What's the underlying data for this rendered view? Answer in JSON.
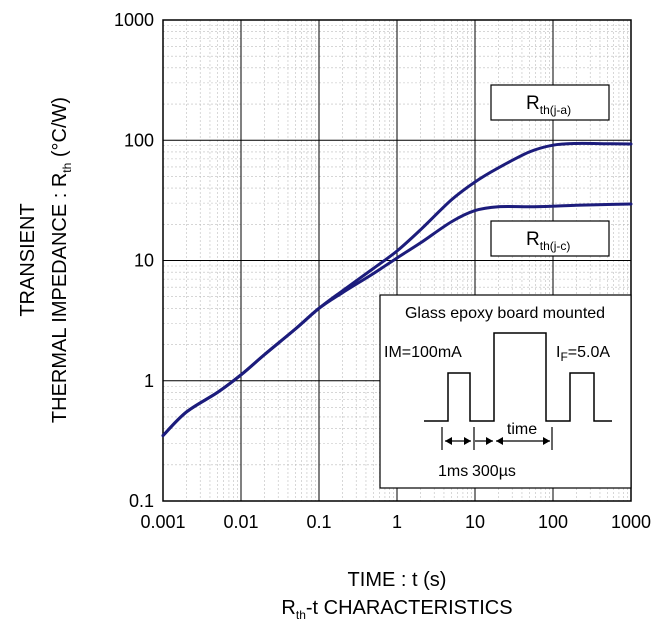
{
  "chart_data": {
    "type": "line",
    "x_scale": "log",
    "y_scale": "log",
    "xlim": [
      0.001,
      1000
    ],
    "ylim": [
      0.1,
      1000
    ],
    "grid": true,
    "x_ticks": [
      "0.001",
      "0.01",
      "0.1",
      "1",
      "10",
      "100",
      "1000"
    ],
    "y_ticks": [
      "0.1",
      "1",
      "10",
      "100",
      "1000"
    ],
    "xlabel": "TIME : t (s)",
    "caption": {
      "main": "R",
      "sub": "th",
      "rest": "-t CHARACTERISTICS"
    },
    "ylabel": {
      "line1": "TRANSIENT",
      "line2_main": "THERMAL IMPEDANCE : R",
      "line2_sub": "th",
      "line2_rest": " (°C/W)"
    },
    "line_color": "#1c1c7c",
    "series": [
      {
        "name": "Rth(j-a)",
        "label_main": "R",
        "label_sub": "th(j-a)",
        "x": [
          0.001,
          0.002,
          0.005,
          0.01,
          0.02,
          0.05,
          0.1,
          0.2,
          0.5,
          1,
          2,
          5,
          10,
          20,
          50,
          100,
          200,
          500,
          1000
        ],
        "y": [
          0.35,
          0.55,
          0.8,
          1.12,
          1.65,
          2.7,
          4.0,
          5.6,
          8.6,
          12.0,
          18.0,
          32.0,
          45.0,
          59.0,
          80.0,
          91.0,
          94.0,
          93.5,
          93.0
        ]
      },
      {
        "name": "Rth(j-c)",
        "label_main": "R",
        "label_sub": "th(j-c)",
        "x": [
          0.001,
          0.002,
          0.005,
          0.01,
          0.02,
          0.05,
          0.1,
          0.2,
          0.5,
          1,
          2,
          5,
          10,
          20,
          50,
          100,
          200,
          500,
          1000
        ],
        "y": [
          0.35,
          0.55,
          0.8,
          1.12,
          1.65,
          2.7,
          4.0,
          5.4,
          7.8,
          10.5,
          14.0,
          21.0,
          26.0,
          28.0,
          28.0,
          28.3,
          28.8,
          29.2,
          29.5
        ]
      }
    ],
    "inset": {
      "title": "Glass epoxy board mounted",
      "im_label": "IM=100mA",
      "if_main": "I",
      "if_sub": "F",
      "if_rest": "=5.0A",
      "time_label": "time",
      "ms_label": "1ms",
      "us_label": "300µs"
    }
  }
}
